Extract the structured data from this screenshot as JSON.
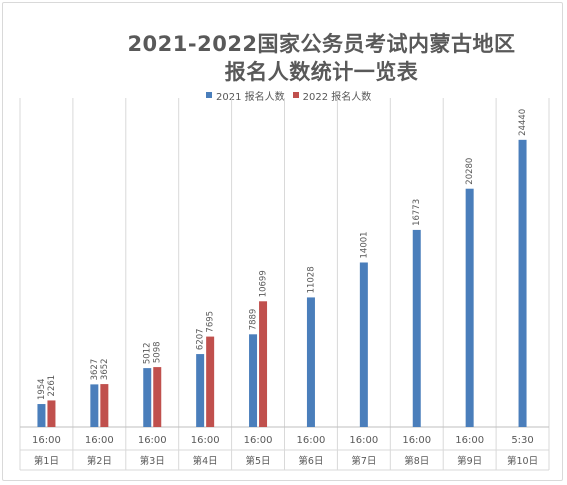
{
  "chart_data": {
    "type": "bar",
    "title_line1": "2021-2022国家公务员考试内蒙古地区",
    "title_line2": "报名人数统计一览表",
    "categories_time": [
      "16:00",
      "16:00",
      "16:00",
      "16:00",
      "16:00",
      "16:00",
      "16:00",
      "16:00",
      "16:00",
      "5:30"
    ],
    "categories_day": [
      "第1日",
      "第2日",
      "第3日",
      "第4日",
      "第5日",
      "第6日",
      "第7日",
      "第8日",
      "第9日",
      "第10日"
    ],
    "series": [
      {
        "name": "2021 报名人数",
        "color": "#4a7ebb",
        "values": [
          1954,
          3627,
          5012,
          6207,
          7889,
          11028,
          14001,
          16773,
          20280,
          24440
        ]
      },
      {
        "name": "2022 报名人数",
        "color": "#c0504d",
        "values": [
          2261,
          3652,
          5098,
          7695,
          10699,
          null,
          null,
          null,
          null,
          null
        ]
      }
    ],
    "ylim": [
      0,
      28000
    ],
    "grid": "vertical category separators",
    "legend_position": "top"
  }
}
